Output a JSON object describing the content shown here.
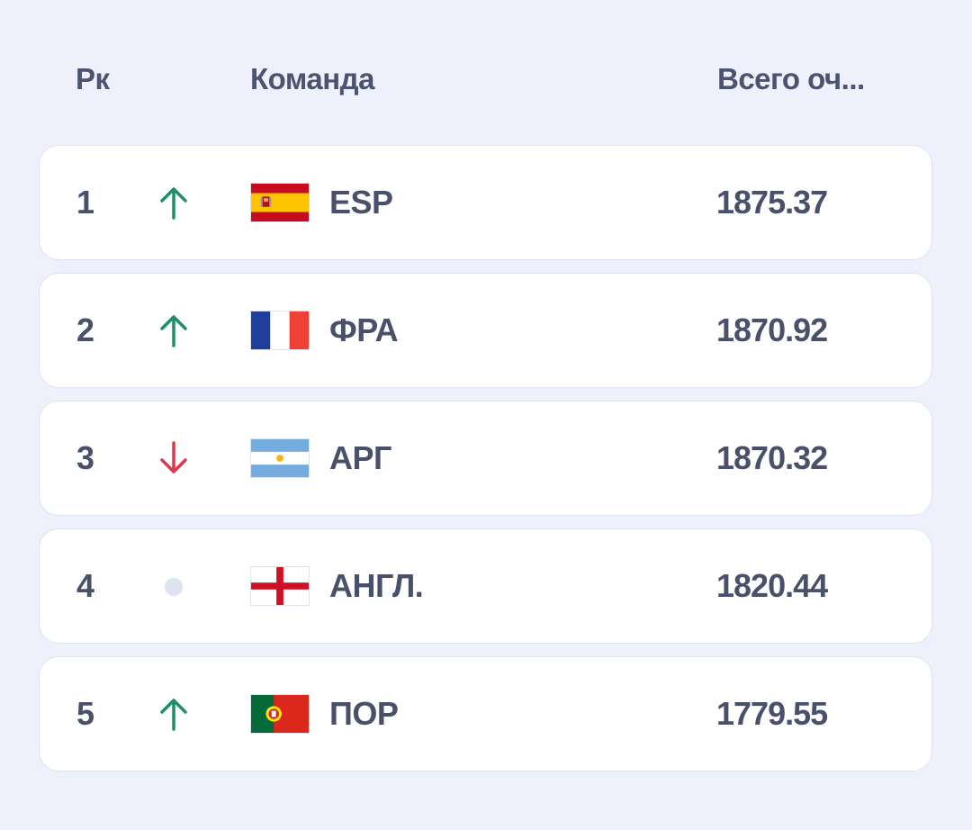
{
  "header": {
    "rank_label": "Рк",
    "team_label": "Команда",
    "points_label": "Всего оч..."
  },
  "colors": {
    "up": "#1e8e6a",
    "down": "#d93a4d",
    "same": "#dde3ef"
  },
  "rows": [
    {
      "rank": "1",
      "trend": "up",
      "trend_icon": "arrow-up-icon",
      "flag": "spain-flag-icon",
      "team": "ESP",
      "points": "1875.37"
    },
    {
      "rank": "2",
      "trend": "up",
      "trend_icon": "arrow-up-icon",
      "flag": "france-flag-icon",
      "team": "ФРА",
      "points": "1870.92"
    },
    {
      "rank": "3",
      "trend": "down",
      "trend_icon": "arrow-down-icon",
      "flag": "argentina-flag-icon",
      "team": "АРГ",
      "points": "1870.32"
    },
    {
      "rank": "4",
      "trend": "same",
      "trend_icon": "dot-icon",
      "flag": "england-flag-icon",
      "team": "АНГЛ.",
      "points": "1820.44"
    },
    {
      "rank": "5",
      "trend": "up",
      "trend_icon": "arrow-up-icon",
      "flag": "portugal-flag-icon",
      "team": "ПОР",
      "points": "1779.55"
    }
  ]
}
